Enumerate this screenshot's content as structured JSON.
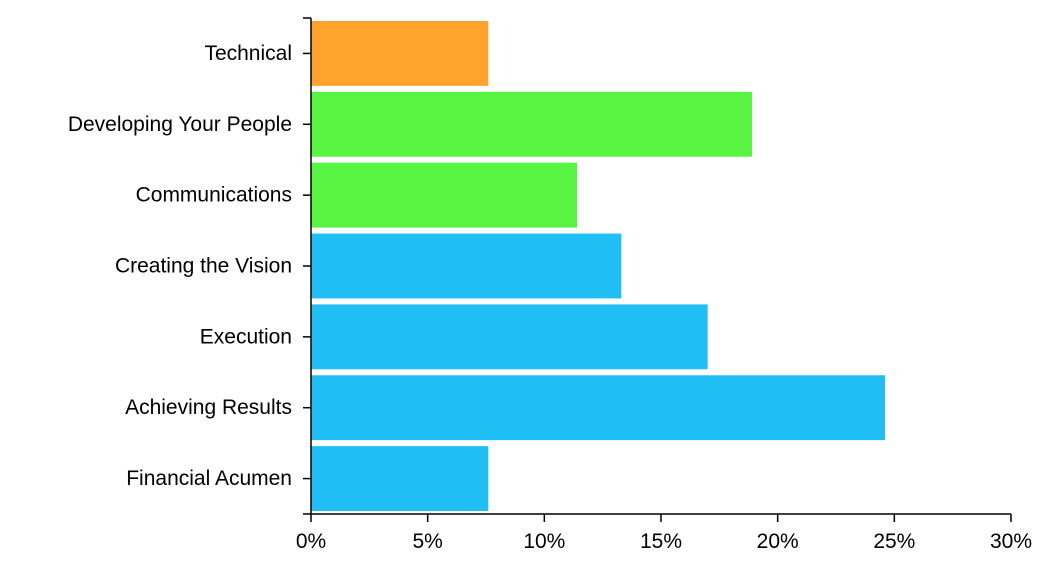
{
  "chart_data": {
    "type": "bar",
    "orientation": "horizontal",
    "title": "",
    "xlabel": "",
    "ylabel": "",
    "categories": [
      "Technical",
      "Developing Your People",
      "Communications",
      "Creating the Vision",
      "Execution",
      "Achieving Results",
      "Financial Acumen"
    ],
    "values": [
      7.6,
      18.9,
      11.4,
      13.3,
      17.0,
      24.6,
      7.6
    ],
    "colors": [
      "#ffa32d",
      "#57f442",
      "#57f442",
      "#1fbff6",
      "#1fbff6",
      "#1fbff6",
      "#1fbff6"
    ],
    "xlim": [
      0,
      30
    ],
    "xticks": [
      0,
      5,
      10,
      15,
      20,
      25,
      30
    ],
    "xtick_labels": [
      "0%",
      "5%",
      "10%",
      "15%",
      "20%",
      "25%",
      "30%"
    ],
    "grid": false,
    "legend": "none"
  }
}
